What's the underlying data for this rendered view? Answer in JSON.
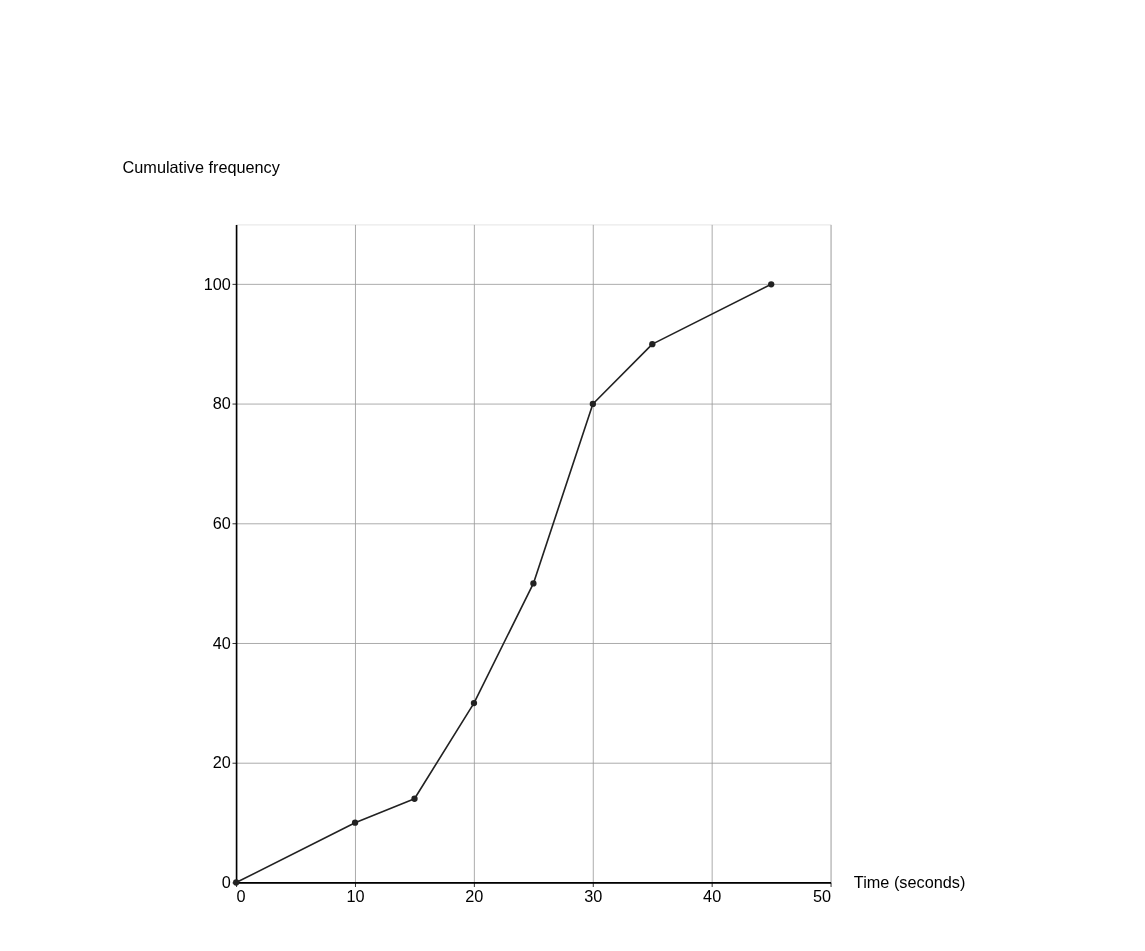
{
  "chart_data": {
    "type": "line",
    "xlabel": "Time (seconds)",
    "ylabel": "Cumulative frequency",
    "x": [
      0,
      10,
      15,
      20,
      25,
      30,
      35,
      45
    ],
    "series": [
      {
        "color": "#222222",
        "values": [
          0,
          10,
          14,
          30,
          50,
          80,
          90,
          100
        ]
      }
    ],
    "xlim": [
      0,
      50
    ],
    "ylim": [
      0,
      110
    ],
    "xticks": [
      0,
      10,
      20,
      30,
      40,
      50
    ],
    "yticks": [
      0,
      20,
      40,
      60,
      80,
      100
    ],
    "grid": true,
    "marker": "circle",
    "line_style": "solid",
    "legend": false
  }
}
